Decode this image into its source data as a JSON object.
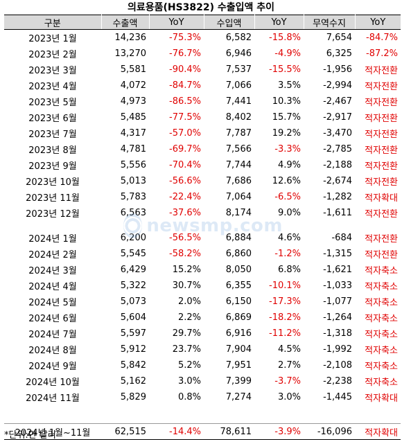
{
  "title": "의료용품(HS3822) 수출입액 추이",
  "headers": [
    "구분",
    "수출액",
    "YoY",
    "수입액",
    "YoY",
    "무역수지",
    "YoY"
  ],
  "rows_2023": [
    {
      "label": "2023년 1월",
      "export": "14,236",
      "export_yoy": "-75.3%",
      "import": "6,582",
      "import_yoy": "-15.8%",
      "balance": "7,654",
      "balance_yoy": "-84.7%"
    },
    {
      "label": "2023년 2월",
      "export": "13,270",
      "export_yoy": "-76.7%",
      "import": "6,946",
      "import_yoy": "-4.9%",
      "balance": "6,325",
      "balance_yoy": "-87.2%"
    },
    {
      "label": "2023년 3월",
      "export": "5,581",
      "export_yoy": "-90.4%",
      "import": "7,537",
      "import_yoy": "-15.5%",
      "balance": "-1,956",
      "balance_yoy": "적자전환"
    },
    {
      "label": "2023년 4월",
      "export": "4,072",
      "export_yoy": "-84.7%",
      "import": "7,066",
      "import_yoy": "3.5%",
      "balance": "-2,994",
      "balance_yoy": "적자전환"
    },
    {
      "label": "2023년 5월",
      "export": "4,973",
      "export_yoy": "-86.5%",
      "import": "7,441",
      "import_yoy": "10.3%",
      "balance": "-2,467",
      "balance_yoy": "적자전환"
    },
    {
      "label": "2023년 6월",
      "export": "5,485",
      "export_yoy": "-77.5%",
      "import": "8,402",
      "import_yoy": "15.7%",
      "balance": "-2,917",
      "balance_yoy": "적자전환"
    },
    {
      "label": "2023년 7월",
      "export": "4,317",
      "export_yoy": "-57.0%",
      "import": "7,787",
      "import_yoy": "19.2%",
      "balance": "-3,470",
      "balance_yoy": "적자전환"
    },
    {
      "label": "2023년 8월",
      "export": "4,781",
      "export_yoy": "-69.7%",
      "import": "7,566",
      "import_yoy": "-3.3%",
      "balance": "-2,785",
      "balance_yoy": "적자전환"
    },
    {
      "label": "2023년 9월",
      "export": "5,556",
      "export_yoy": "-70.4%",
      "import": "7,744",
      "import_yoy": "4.9%",
      "balance": "-2,188",
      "balance_yoy": "적자전환"
    },
    {
      "label": "2023년 10월",
      "export": "5,013",
      "export_yoy": "-56.6%",
      "import": "7,686",
      "import_yoy": "12.6%",
      "balance": "-2,674",
      "balance_yoy": "적자전환"
    },
    {
      "label": "2023년 11월",
      "export": "5,783",
      "export_yoy": "-22.4%",
      "import": "7,064",
      "import_yoy": "-6.5%",
      "balance": "-1,282",
      "balance_yoy": "적자확대"
    },
    {
      "label": "2023년 12월",
      "export": "6,563",
      "export_yoy": "-37.6%",
      "import": "8,174",
      "import_yoy": "9.0%",
      "balance": "-1,611",
      "balance_yoy": "적자전환"
    }
  ],
  "rows_2024": [
    {
      "label": "2024년 1월",
      "export": "6,200",
      "export_yoy": "-56.5%",
      "import": "6,884",
      "import_yoy": "4.6%",
      "balance": "-684",
      "balance_yoy": "적자전환"
    },
    {
      "label": "2024년 2월",
      "export": "5,545",
      "export_yoy": "-58.2%",
      "import": "6,860",
      "import_yoy": "-1.2%",
      "balance": "-1,315",
      "balance_yoy": "적자전환"
    },
    {
      "label": "2024년 3월",
      "export": "6,429",
      "export_yoy": "15.2%",
      "import": "8,050",
      "import_yoy": "6.8%",
      "balance": "-1,621",
      "balance_yoy": "적자축소"
    },
    {
      "label": "2024년 4월",
      "export": "5,322",
      "export_yoy": "30.7%",
      "import": "6,355",
      "import_yoy": "-10.1%",
      "balance": "-1,033",
      "balance_yoy": "적자축소"
    },
    {
      "label": "2024년 5월",
      "export": "5,073",
      "export_yoy": "2.0%",
      "import": "6,150",
      "import_yoy": "-17.3%",
      "balance": "-1,077",
      "balance_yoy": "적자축소"
    },
    {
      "label": "2024년 6월",
      "export": "5,604",
      "export_yoy": "2.2%",
      "import": "6,869",
      "import_yoy": "-18.2%",
      "balance": "-1,264",
      "balance_yoy": "적자축소"
    },
    {
      "label": "2024년 7월",
      "export": "5,597",
      "export_yoy": "29.7%",
      "import": "6,916",
      "import_yoy": "-11.2%",
      "balance": "-1,318",
      "balance_yoy": "적자축소"
    },
    {
      "label": "2024년 8월",
      "export": "5,912",
      "export_yoy": "23.7%",
      "import": "7,904",
      "import_yoy": "4.5%",
      "balance": "-1,992",
      "balance_yoy": "적자축소"
    },
    {
      "label": "2024년 9월",
      "export": "5,842",
      "export_yoy": "5.2%",
      "import": "7,951",
      "import_yoy": "2.7%",
      "balance": "-2,108",
      "balance_yoy": "적자축소"
    },
    {
      "label": "2024년 10월",
      "export": "5,162",
      "export_yoy": "3.0%",
      "import": "7,399",
      "import_yoy": "-3.7%",
      "balance": "-2,238",
      "balance_yoy": "적자축소"
    },
    {
      "label": "2024년 11월",
      "export": "5,829",
      "export_yoy": "0.8%",
      "import": "7,274",
      "import_yoy": "3.0%",
      "balance": "-1,445",
      "balance_yoy": "적자확대"
    }
  ],
  "total": {
    "label": "2024년 1월~11월",
    "export": "62,515",
    "export_yoy": "-14.4%",
    "import": "78,611",
    "import_yoy": "-3.9%",
    "balance": "-16,096",
    "balance_yoy": "적자확대"
  },
  "note": "*단위:만 달러",
  "watermark": "newsmp.com",
  "colors": {
    "negative": "#e00000",
    "header_bg": "#d9d9d9",
    "watermark": "#6aa0d8"
  }
}
